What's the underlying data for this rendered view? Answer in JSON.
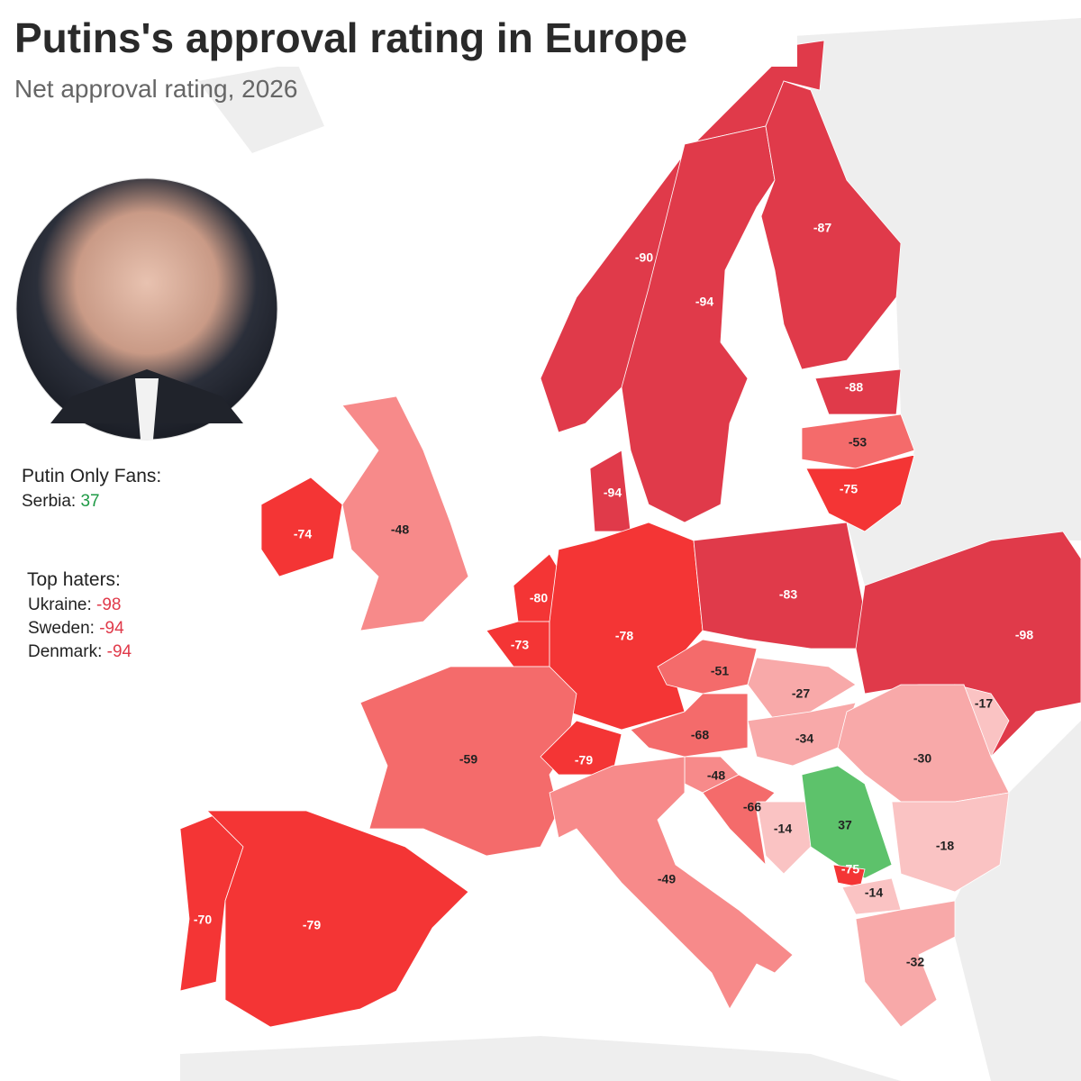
{
  "title": "Putins's approval rating in Europe",
  "subtitle": "Net approval rating, 2026",
  "fans": {
    "title": "Putin Only Fans:",
    "items": [
      {
        "label": "Serbia:",
        "value": 37,
        "color": "#1e9a45"
      }
    ]
  },
  "haters": {
    "title": "Top haters:",
    "items": [
      {
        "label": "Ukraine:",
        "value": -98,
        "color": "#e03a4a"
      },
      {
        "label": "Sweden:",
        "value": -94,
        "color": "#e03a4a"
      },
      {
        "label": "Denmark:",
        "value": -94,
        "color": "#e03a4a"
      }
    ]
  },
  "regions": [
    {
      "value": -90,
      "color": "#e03a4a"
    },
    {
      "value": -94,
      "color": "#e03a4a"
    },
    {
      "value": -87,
      "color": "#e03a4a"
    },
    {
      "value": -88,
      "color": "#e03a4a"
    },
    {
      "value": -53,
      "color": "#f46b6b"
    },
    {
      "value": -75,
      "color": "#f43535"
    },
    {
      "value": -94,
      "color": "#e03a4a"
    },
    {
      "value": -74,
      "color": "#f43535"
    },
    {
      "value": -48,
      "color": "#f78a8a"
    },
    {
      "value": -80,
      "color": "#f43535"
    },
    {
      "value": -73,
      "color": "#f43535"
    },
    {
      "value": -78,
      "color": "#f43535"
    },
    {
      "value": -83,
      "color": "#e03a4a"
    },
    {
      "value": -98,
      "color": "#e03a4a"
    },
    {
      "value": -51,
      "color": "#f46b6b"
    },
    {
      "value": -27,
      "color": "#f8a9a9"
    },
    {
      "value": -17,
      "color": "#fac3c3"
    },
    {
      "value": -68,
      "color": "#f46b6b"
    },
    {
      "value": -34,
      "color": "#f8a9a9"
    },
    {
      "value": -30,
      "color": "#f8a9a9"
    },
    {
      "value": -59,
      "color": "#f46b6b"
    },
    {
      "value": -79,
      "color": "#f43535"
    },
    {
      "value": -48,
      "color": "#f78a8a"
    },
    {
      "value": -66,
      "color": "#f46b6b"
    },
    {
      "value": -14,
      "color": "#fac3c3"
    },
    {
      "value": 37,
      "color": "#5dc26b"
    },
    {
      "value": -18,
      "color": "#fac3c3"
    },
    {
      "value": -75,
      "color": "#f43535"
    },
    {
      "value": -14,
      "color": "#fac3c3"
    },
    {
      "value": -49,
      "color": "#f78a8a"
    },
    {
      "value": -70,
      "color": "#f43535"
    },
    {
      "value": -79,
      "color": "#f43535"
    },
    {
      "value": -32,
      "color": "#f8a9a9"
    }
  ]
}
